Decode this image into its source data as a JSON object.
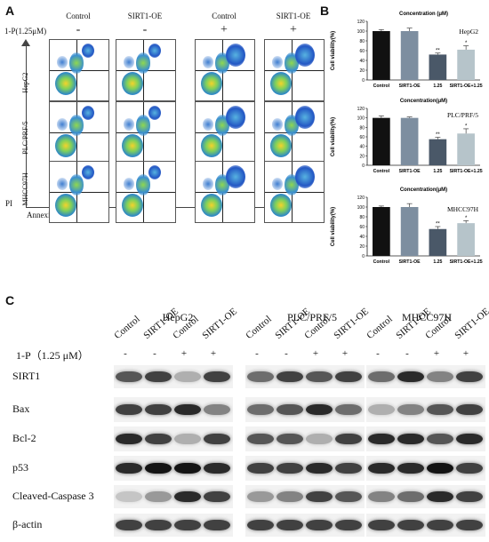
{
  "panel_a": {
    "letter": "A",
    "columns": [
      "Control",
      "SIRT1-OE",
      "Control",
      "SIRT1-OE"
    ],
    "treatment_label": "1-P(1.25μM)",
    "signs": [
      "-",
      "-",
      "+",
      "+"
    ],
    "rows": [
      "HepG2",
      "PLC/PRF/5",
      "MHCC97H"
    ],
    "y_axis": "PI",
    "x_axis": "Annexin V"
  },
  "panel_b": {
    "letter": "B",
    "charts": [
      {
        "title": "Concentration (μM)",
        "cell_line": "HepG2",
        "ylabel": "Cell viability(%)",
        "categories": [
          "Control",
          "SIRT1-OE",
          "1.25",
          "SIRT1-OE+1.25"
        ],
        "values": [
          100,
          100,
          52,
          62
        ],
        "errors": [
          3,
          6,
          3,
          8
        ],
        "sig": [
          "",
          "",
          "**",
          "*"
        ],
        "yticks": [
          "0",
          "20",
          "40",
          "60",
          "80",
          "100",
          "120"
        ]
      },
      {
        "title": "Concentration(μM)",
        "cell_line": "PLC/PRF/5",
        "ylabel": "Cell viability(%)",
        "categories": [
          "Control",
          "SIRT1-OE",
          "1.25",
          "SIRT1-OE+1.25"
        ],
        "values": [
          100,
          100,
          55,
          67
        ],
        "errors": [
          4,
          2,
          4,
          10
        ],
        "sig": [
          "",
          "",
          "**",
          "*"
        ],
        "yticks": [
          "0",
          "20",
          "40",
          "60",
          "80",
          "100",
          "120"
        ]
      },
      {
        "title": "Concentration(μM)",
        "cell_line": "MHCC97H",
        "ylabel": "Cell viability(%)",
        "categories": [
          "Control",
          "SIRT1-OE",
          "1.25",
          "SIRT1-OE+1.25"
        ],
        "values": [
          100,
          100,
          55,
          67
        ],
        "errors": [
          2,
          7,
          5,
          5
        ],
        "sig": [
          "",
          "",
          "**",
          "*"
        ],
        "yticks": [
          "0",
          "20",
          "40",
          "60",
          "80",
          "100",
          "120"
        ]
      }
    ]
  },
  "chart_data": [
    {
      "type": "bar",
      "title": "Concentration (μM)",
      "ylabel": "Cell viability(%)",
      "ylim": [
        0,
        120
      ],
      "categories": [
        "Control",
        "SIRT1-OE",
        "1.25",
        "SIRT1-OE+1.25"
      ],
      "values": [
        100,
        100,
        52,
        62
      ],
      "annotations": [
        "HepG2",
        "**",
        "*"
      ]
    },
    {
      "type": "bar",
      "title": "Concentration(μM)",
      "ylabel": "Cell viability(%)",
      "ylim": [
        0,
        120
      ],
      "categories": [
        "Control",
        "SIRT1-OE",
        "1.25",
        "SIRT1-OE+1.25"
      ],
      "values": [
        100,
        100,
        55,
        67
      ],
      "annotations": [
        "PLC/PRF/5",
        "**",
        "*"
      ]
    },
    {
      "type": "bar",
      "title": "Concentration(μM)",
      "ylabel": "Cell viability(%)",
      "ylim": [
        0,
        120
      ],
      "categories": [
        "Control",
        "SIRT1-OE",
        "1.25",
        "SIRT1-OE+1.25"
      ],
      "values": [
        100,
        100,
        55,
        67
      ],
      "annotations": [
        "MHCC97H",
        "**",
        "*"
      ]
    }
  ],
  "panel_c": {
    "letter": "C",
    "groups": [
      "HepG2",
      "PLC/PRF/5",
      "MHCC97H"
    ],
    "conditions": [
      "Control",
      "SIRT1-OE",
      "Control",
      "SIRT1-OE"
    ],
    "treatment_label": "1-P（1.25 μM）",
    "signs": [
      "-",
      "-",
      "+",
      "+"
    ],
    "proteins": [
      "SIRT1",
      "Bax",
      "Bcl-2",
      "p53",
      "Cleaved-Caspase 3",
      "β-actin"
    ]
  },
  "colors": {
    "bar_control": "#111111",
    "bar_sirt1": "#7d8ea0",
    "bar_treat": "#4a5868",
    "bar_combo": "#b6c4ca"
  }
}
